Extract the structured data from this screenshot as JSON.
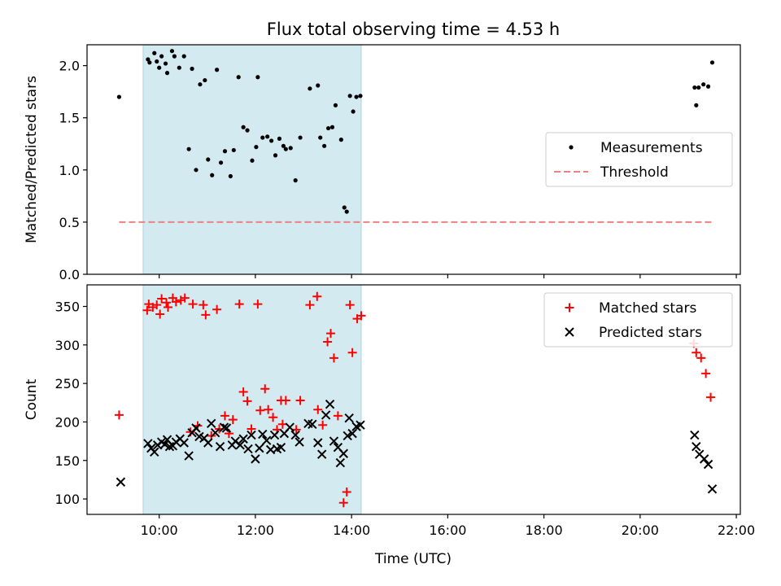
{
  "chart_data": {
    "type": "scatter",
    "title": "Flux total observing time = 4.53 h",
    "xlabel": "Time (UTC)",
    "xlim": [
      "08:30",
      "22:05"
    ],
    "x_ticks": [
      "10:00",
      "12:00",
      "14:00",
      "16:00",
      "18:00",
      "20:00",
      "22:00"
    ],
    "shaded_interval": {
      "start": "09:40",
      "end": "14:12",
      "color": "#d4eaf1"
    },
    "panels": [
      {
        "id": "ratio",
        "ylabel": "Matched/Predicted stars",
        "ylim": [
          0,
          2.2
        ],
        "y_ticks": [
          0.0,
          0.5,
          1.0,
          1.5,
          2.0
        ],
        "legend_position": "center-right",
        "series": [
          {
            "name": "Measurements",
            "marker": "dot",
            "color": "#000000",
            "points": [
              [
                "09:10",
                1.7
              ],
              [
                "09:46",
                2.06
              ],
              [
                "09:48",
                2.03
              ],
              [
                "09:54",
                2.12
              ],
              [
                "09:57",
                2.04
              ],
              [
                "10:00",
                1.98
              ],
              [
                "10:03",
                2.09
              ],
              [
                "10:08",
                2.02
              ],
              [
                "10:10",
                1.93
              ],
              [
                "10:16",
                2.14
              ],
              [
                "10:19",
                2.09
              ],
              [
                "10:25",
                1.98
              ],
              [
                "10:31",
                2.09
              ],
              [
                "10:37",
                1.2
              ],
              [
                "10:41",
                1.97
              ],
              [
                "10:46",
                1.0
              ],
              [
                "10:51",
                1.82
              ],
              [
                "10:57",
                1.86
              ],
              [
                "11:01",
                1.1
              ],
              [
                "11:06",
                0.95
              ],
              [
                "11:12",
                1.96
              ],
              [
                "11:17",
                1.07
              ],
              [
                "11:22",
                1.18
              ],
              [
                "11:29",
                0.94
              ],
              [
                "11:33",
                1.19
              ],
              [
                "11:39",
                1.89
              ],
              [
                "11:45",
                1.41
              ],
              [
                "11:50",
                1.38
              ],
              [
                "11:56",
                1.09
              ],
              [
                "12:01",
                1.22
              ],
              [
                "12:03",
                1.89
              ],
              [
                "12:09",
                1.31
              ],
              [
                "12:15",
                1.32
              ],
              [
                "12:20",
                1.28
              ],
              [
                "12:25",
                1.14
              ],
              [
                "12:30",
                1.3
              ],
              [
                "12:35",
                1.23
              ],
              [
                "12:38",
                1.2
              ],
              [
                "12:44",
                1.21
              ],
              [
                "12:50",
                0.9
              ],
              [
                "12:56",
                1.31
              ],
              [
                "13:08",
                1.78
              ],
              [
                "13:18",
                1.81
              ],
              [
                "13:21",
                1.31
              ],
              [
                "13:26",
                1.23
              ],
              [
                "13:31",
                1.4
              ],
              [
                "13:36",
                1.41
              ],
              [
                "13:40",
                1.62
              ],
              [
                "13:47",
                1.29
              ],
              [
                "13:51",
                0.64
              ],
              [
                "13:54",
                0.6
              ],
              [
                "13:58",
                1.71
              ],
              [
                "14:02",
                1.56
              ],
              [
                "14:06",
                1.7
              ],
              [
                "14:11",
                1.71
              ],
              [
                "21:08",
                1.79
              ],
              [
                "21:10",
                1.62
              ],
              [
                "21:13",
                1.79
              ],
              [
                "21:19",
                1.82
              ],
              [
                "21:25",
                1.8
              ],
              [
                "21:30",
                2.03
              ]
            ]
          },
          {
            "name": "Threshold",
            "marker": "dashed-line",
            "color": "#f08080",
            "points": [
              [
                "09:10",
                0.5
              ],
              [
                "21:30",
                0.5
              ]
            ]
          }
        ]
      },
      {
        "id": "counts",
        "ylabel": "Count",
        "ylim": [
          80,
          378
        ],
        "y_ticks": [
          100,
          150,
          200,
          250,
          300,
          350
        ],
        "legend_position": "top-right",
        "series": [
          {
            "name": "Matched stars",
            "marker": "plus",
            "color": "#ff0000",
            "points": [
              [
                "09:10",
                209
              ],
              [
                "09:45",
                345
              ],
              [
                "09:47",
                353
              ],
              [
                "09:52",
                349
              ],
              [
                "09:57",
                352
              ],
              [
                "10:01",
                340
              ],
              [
                "10:03",
                360
              ],
              [
                "10:09",
                355
              ],
              [
                "10:11",
                349
              ],
              [
                "10:17",
                361
              ],
              [
                "10:21",
                356
              ],
              [
                "10:27",
                358
              ],
              [
                "10:32",
                361
              ],
              [
                "10:39",
                187
              ],
              [
                "10:42",
                353
              ],
              [
                "10:48",
                195
              ],
              [
                "10:55",
                352
              ],
              [
                "10:58",
                339
              ],
              [
                "11:05",
                182
              ],
              [
                "11:12",
                346
              ],
              [
                "11:15",
                191
              ],
              [
                "11:22",
                208
              ],
              [
                "11:27",
                185
              ],
              [
                "11:32",
                203
              ],
              [
                "11:40",
                353
              ],
              [
                "11:45",
                239
              ],
              [
                "11:50",
                227
              ],
              [
                "11:55",
                191
              ],
              [
                "12:03",
                353
              ],
              [
                "12:06",
                215
              ],
              [
                "12:12",
                243
              ],
              [
                "12:16",
                216
              ],
              [
                "12:22",
                206
              ],
              [
                "12:27",
                190
              ],
              [
                "12:32",
                228
              ],
              [
                "12:34",
                197
              ],
              [
                "12:38",
                228
              ],
              [
                "12:51",
                190
              ],
              [
                "12:56",
                228
              ],
              [
                "13:08",
                352
              ],
              [
                "13:17",
                363
              ],
              [
                "13:18",
                216
              ],
              [
                "13:24",
                196
              ],
              [
                "13:30",
                304
              ],
              [
                "13:34",
                315
              ],
              [
                "13:38",
                283
              ],
              [
                "13:43",
                208
              ],
              [
                "13:50",
                95
              ],
              [
                "13:54",
                109
              ],
              [
                "13:58",
                352
              ],
              [
                "14:01",
                290
              ],
              [
                "14:07",
                334
              ],
              [
                "14:12",
                338
              ],
              [
                "21:07",
                302
              ],
              [
                "21:10",
                290
              ],
              [
                "21:16",
                283
              ],
              [
                "21:22",
                263
              ],
              [
                "21:28",
                232
              ]
            ]
          },
          {
            "name": "Predicted stars",
            "marker": "x",
            "color": "#000000",
            "points": [
              [
                "09:12",
                122
              ],
              [
                "09:46",
                172
              ],
              [
                "09:50",
                166
              ],
              [
                "09:54",
                161
              ],
              [
                "09:58",
                170
              ],
              [
                "10:03",
                174
              ],
              [
                "10:07",
                171
              ],
              [
                "10:10",
                177
              ],
              [
                "10:13",
                168
              ],
              [
                "10:17",
                169
              ],
              [
                "10:21",
                174
              ],
              [
                "10:26",
                178
              ],
              [
                "10:31",
                173
              ],
              [
                "10:37",
                156
              ],
              [
                "10:41",
                186
              ],
              [
                "10:46",
                192
              ],
              [
                "10:50",
                181
              ],
              [
                "10:56",
                179
              ],
              [
                "11:01",
                173
              ],
              [
                "11:05",
                198
              ],
              [
                "11:10",
                186
              ],
              [
                "11:16",
                168
              ],
              [
                "11:21",
                193
              ],
              [
                "11:24",
                192
              ],
              [
                "11:31",
                170
              ],
              [
                "11:35",
                175
              ],
              [
                "11:41",
                170
              ],
              [
                "11:45",
                178
              ],
              [
                "11:51",
                165
              ],
              [
                "11:55",
                183
              ],
              [
                "12:00",
                152
              ],
              [
                "12:05",
                166
              ],
              [
                "12:09",
                184
              ],
              [
                "12:14",
                176
              ],
              [
                "12:19",
                164
              ],
              [
                "12:24",
                183
              ],
              [
                "12:27",
                165
              ],
              [
                "12:32",
                167
              ],
              [
                "12:36",
                185
              ],
              [
                "12:43",
                193
              ],
              [
                "12:50",
                183
              ],
              [
                "12:55",
                174
              ],
              [
                "13:06",
                198
              ],
              [
                "13:11",
                197
              ],
              [
                "13:18",
                173
              ],
              [
                "13:23",
                158
              ],
              [
                "13:28",
                209
              ],
              [
                "13:33",
                223
              ],
              [
                "13:38",
                175
              ],
              [
                "13:43",
                167
              ],
              [
                "13:46",
                147
              ],
              [
                "13:50",
                159
              ],
              [
                "13:55",
                182
              ],
              [
                "13:57",
                205
              ],
              [
                "14:01",
                185
              ],
              [
                "14:06",
                194
              ],
              [
                "14:11",
                196
              ],
              [
                "21:08",
                183
              ],
              [
                "21:10",
                168
              ],
              [
                "21:14",
                158
              ],
              [
                "21:20",
                152
              ],
              [
                "21:25",
                145
              ],
              [
                "21:30",
                113
              ]
            ]
          }
        ]
      }
    ]
  }
}
